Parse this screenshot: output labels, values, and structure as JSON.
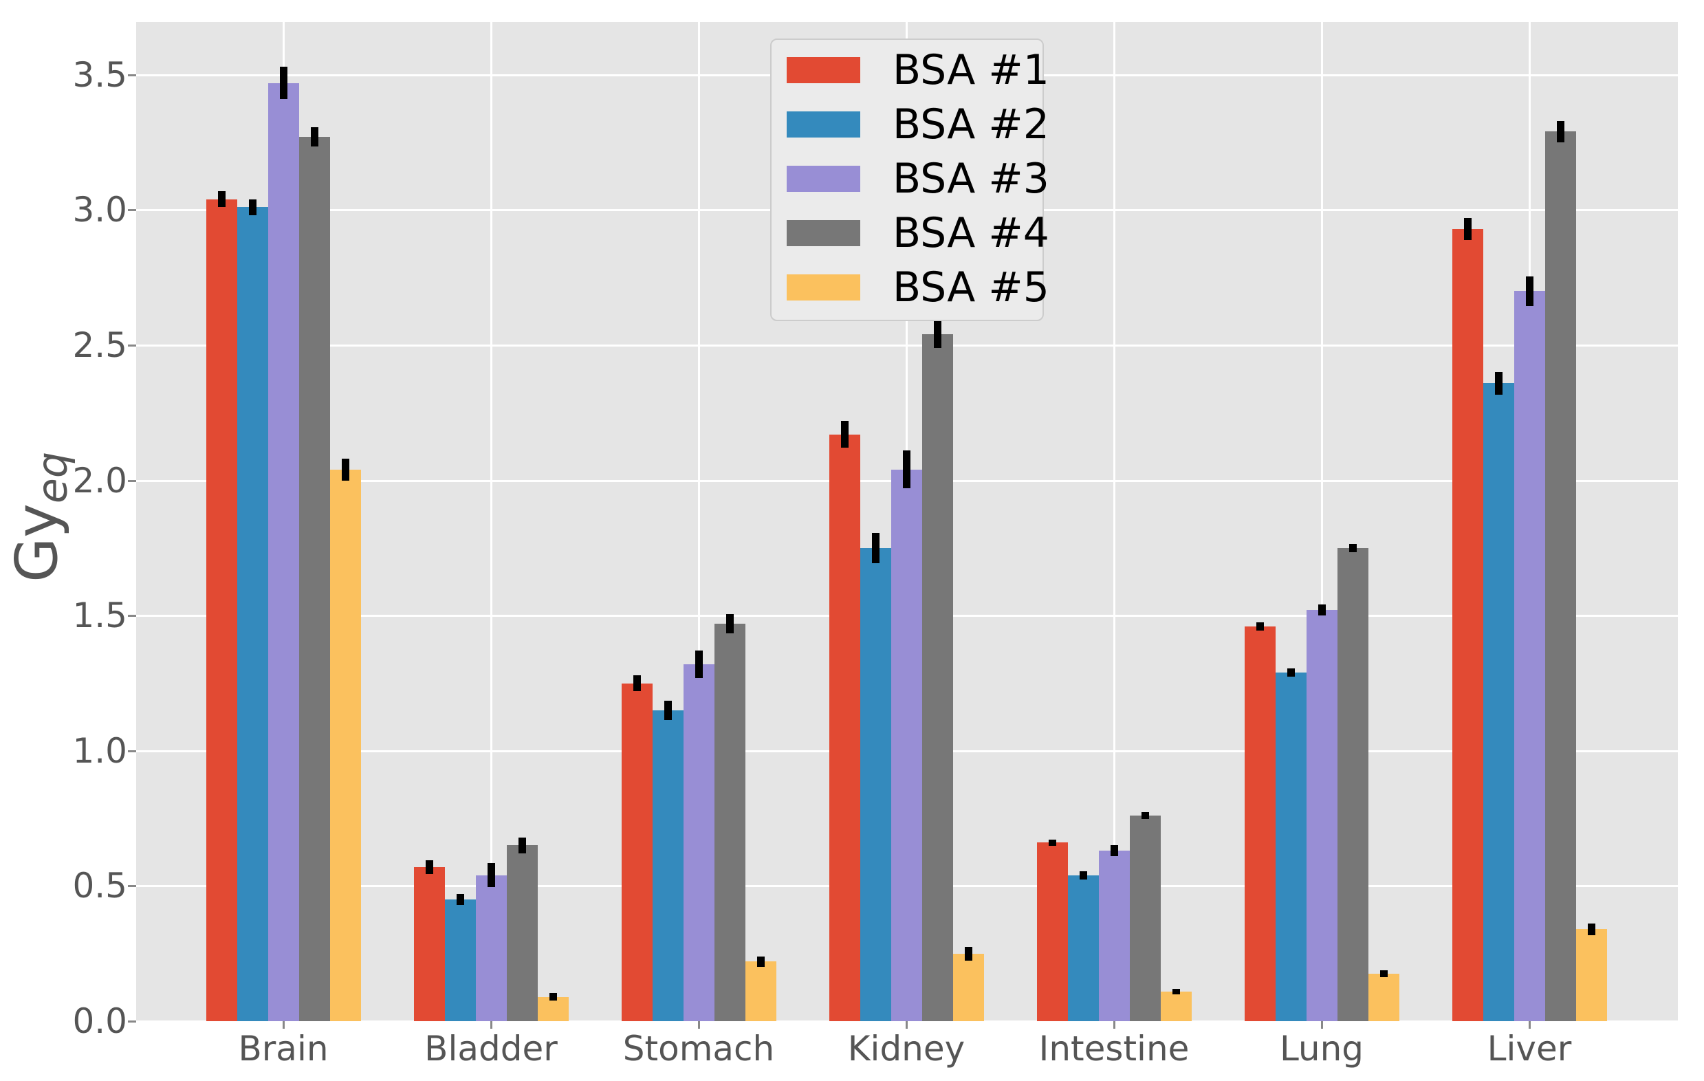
{
  "figure": {
    "background": "#ffffff",
    "plot_background": "#e5e5e5",
    "grid_color": "#ffffff",
    "tick_color": "#888888",
    "text_color": "#555555",
    "errorbar_color": "#000000",
    "legend_background": "#ebebeb",
    "legend_border": "#cccccc"
  },
  "y_axis": {
    "label_main": "Gy",
    "label_sub": "eq",
    "ticks": [
      "0.0",
      "0.5",
      "1.0",
      "1.5",
      "2.0",
      "2.5",
      "3.0",
      "3.5"
    ],
    "tick_values": [
      0,
      0.5,
      1.0,
      1.5,
      2.0,
      2.5,
      3.0,
      3.5
    ]
  },
  "chart_data": {
    "type": "bar",
    "title": "",
    "xlabel": "",
    "ylabel": "Gy_eq",
    "ylim": [
      0,
      3.695
    ],
    "grid": true,
    "legend_position": "upper center",
    "categories": [
      "Brain",
      "Bladder",
      "Stomach",
      "Kidney",
      "Intestine",
      "Lung",
      "Liver"
    ],
    "series": [
      {
        "name": "BSA #1",
        "color": "#e24a33",
        "values": [
          3.04,
          0.57,
          1.25,
          2.17,
          0.66,
          1.46,
          2.93
        ],
        "errors": [
          0.03,
          0.025,
          0.03,
          0.05,
          0.012,
          0.015,
          0.04
        ]
      },
      {
        "name": "BSA #2",
        "color": "#348abd",
        "values": [
          3.01,
          0.45,
          1.15,
          1.75,
          0.54,
          1.29,
          2.36
        ],
        "errors": [
          0.03,
          0.02,
          0.035,
          0.055,
          0.015,
          0.015,
          0.042
        ]
      },
      {
        "name": "BSA #3",
        "color": "#988ed5",
        "values": [
          3.47,
          0.54,
          1.32,
          2.04,
          0.63,
          1.52,
          2.7
        ],
        "errors": [
          0.06,
          0.045,
          0.05,
          0.07,
          0.02,
          0.02,
          0.055
        ]
      },
      {
        "name": "BSA #4",
        "color": "#777777",
        "values": [
          3.27,
          0.65,
          1.47,
          2.54,
          0.76,
          1.75,
          3.29
        ],
        "errors": [
          0.035,
          0.03,
          0.035,
          0.05,
          0.012,
          0.015,
          0.04
        ]
      },
      {
        "name": "BSA #5",
        "color": "#fbc15e",
        "values": [
          2.04,
          0.09,
          0.22,
          0.25,
          0.11,
          0.175,
          0.34
        ],
        "errors": [
          0.04,
          0.015,
          0.02,
          0.025,
          0.01,
          0.012,
          0.022
        ]
      }
    ]
  }
}
